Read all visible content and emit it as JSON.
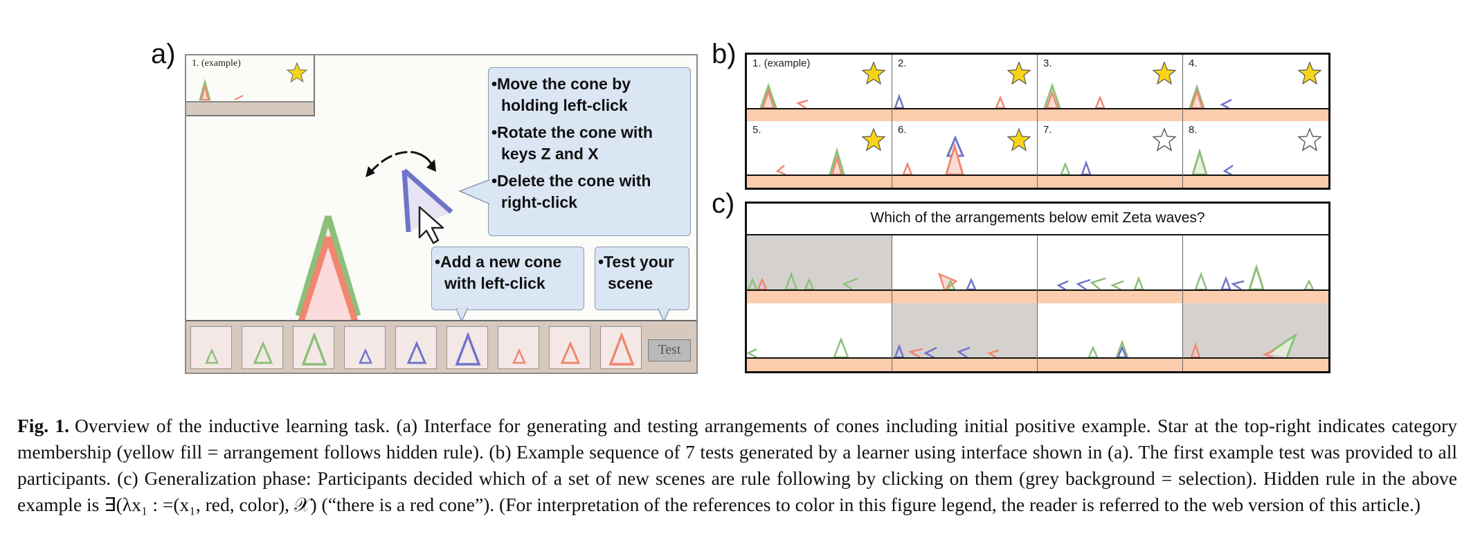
{
  "panels": {
    "a": {
      "label": "a)",
      "example_label": "1. (example)",
      "instructions_top": [
        "•Move the cone by holding left-click",
        "•Rotate the cone with keys Z and X",
        "•Delete the cone with right-click"
      ],
      "instruction_add": "•Add a new cone with left-click",
      "instruction_test": "•Test your scene",
      "test_button": "Test",
      "toolbar_cones": [
        "green-small",
        "green-medium",
        "green-large",
        "blue-small",
        "blue-medium",
        "blue-large",
        "red-small",
        "red-medium",
        "red-large"
      ],
      "example_star": "filled"
    },
    "b": {
      "label": "b)",
      "tests": [
        {
          "label": "1. (example)",
          "star": "filled"
        },
        {
          "label": "2.",
          "star": "filled"
        },
        {
          "label": "3.",
          "star": "filled"
        },
        {
          "label": "4.",
          "star": "filled"
        },
        {
          "label": "5.",
          "star": "filled"
        },
        {
          "label": "6.",
          "star": "filled"
        },
        {
          "label": "7.",
          "star": "empty"
        },
        {
          "label": "8.",
          "star": "empty"
        }
      ]
    },
    "c": {
      "label": "c)",
      "question": "Which of the arrangements below emit Zeta waves?",
      "selected": [
        true,
        false,
        false,
        false,
        false,
        true,
        false,
        true
      ]
    }
  },
  "caption": {
    "fig_label": "Fig. 1.",
    "text": "Overview of the inductive learning task. (a) Interface for generating and testing arrangements of cones including initial positive example. Star at the top-right indicates category membership (yellow fill = arrangement follows hidden rule). (b) Example sequence of 7 tests generated by a learner using interface shown in (a). The first example test was provided to all participants. (c) Generalization phase: Participants decided which of a set of new scenes are rule following by clicking on them (grey background = selection). Hidden rule in the above example is ∃(λx₁ :  =(x₁, red, color), 𝒳) (“there is a red cone”). (For interpretation of the references to color in this figure legend, the reader is referred to the web version of this article.)"
  },
  "colors": {
    "red": "#f08670",
    "green": "#8cc07a",
    "blue": "#6f74c8",
    "star_fill": "#f7d417",
    "bubble": "#dbe6f5",
    "floor_b": "#fccdad",
    "floor_a": "#d8c9be",
    "selected_bg": "#d5d1cf"
  }
}
